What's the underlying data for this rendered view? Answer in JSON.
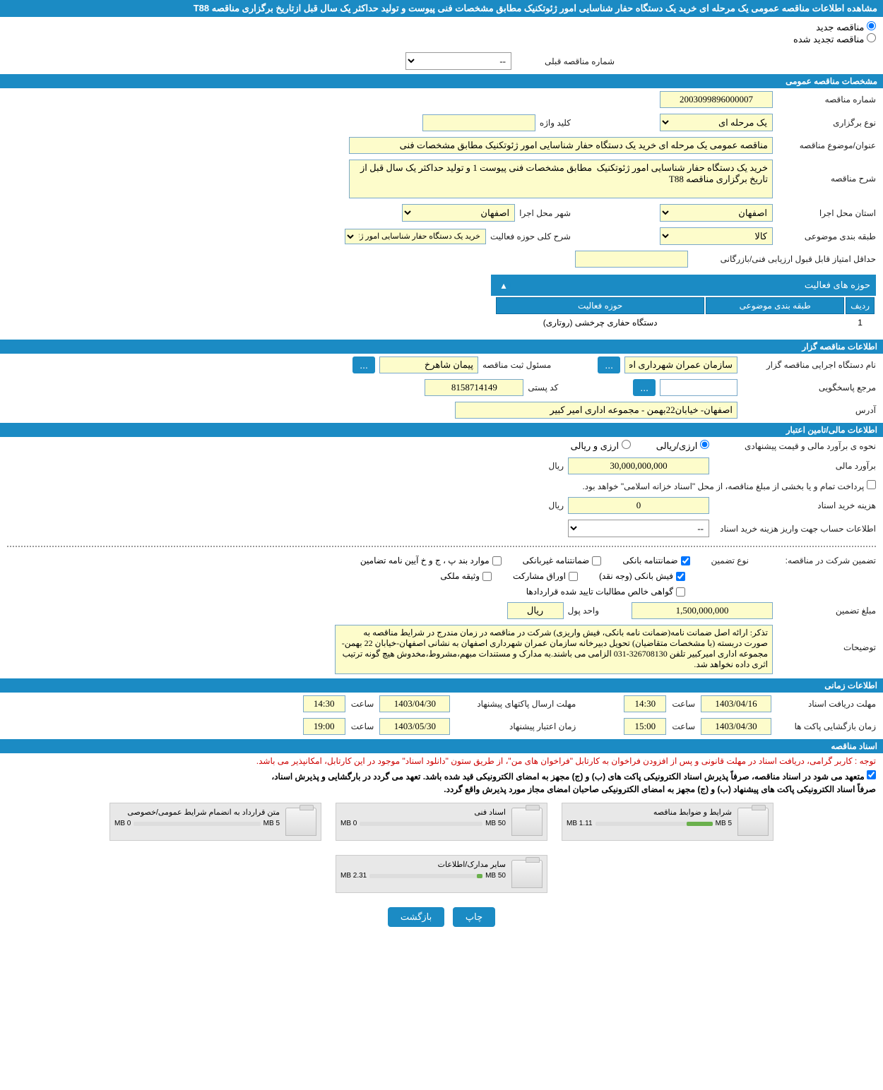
{
  "page_title": "مشاهده اطلاعات مناقصه عمومی یک مرحله ای خرید یک دستگاه حفار شناسایی امور ژئوتکنیک مطابق مشخصات فنی پیوست و تولید حداکثر یک سال قبل ازتاریخ برگزاری مناقصه T88",
  "radios": {
    "new": "مناقصه جدید",
    "renewed": "مناقصه تجدید شده"
  },
  "prev_number_label": "شماره مناقصه قبلی",
  "prev_number_value": "--",
  "sections": {
    "general": "مشخصات مناقصه عمومی",
    "holder": "اطلاعات مناقصه گزار",
    "financial": "اطلاعات مالی/تامین اعتبار",
    "time": "اطلاعات زمانی",
    "docs": "اسناد مناقصه"
  },
  "general": {
    "number_label": "شماره مناقصه",
    "number": "2003099896000007",
    "type_label": "نوع برگزاری",
    "type": "یک مرحله ای",
    "keyword_label": "کلید واژه",
    "keyword": "",
    "title_label": "عنوان/موضوع مناقصه",
    "title": "مناقصه عمومی یک مرحله ای خرید یک دستگاه حفار شناسایی امور ژئوتکنیک مطابق مشخصات فنی",
    "desc_label": "شرح مناقصه",
    "desc": "خرید یک دستگاه حفار شناسایی امور ژئوتکنیک  مطابق مشخصات فنی پیوست 1 و تولید حداکثر یک سال قبل از تاریخ برگزاری مناقصه T88",
    "province_label": "استان محل اجرا",
    "province": "اصفهان",
    "city_label": "شهر محل اجرا",
    "city": "اصفهان",
    "class_label": "طبقه بندی موضوعی",
    "class": "کالا",
    "scope_label": "شرح کلی حوزه فعالیت",
    "scope": "خرید یک دستگاه حفار شناسایی امور ژئوتکنیک",
    "min_score_label": "حداقل امتیاز قابل قبول ارزیابی فنی/بازرگانی",
    "min_score": ""
  },
  "activity": {
    "header": "حوزه های فعالیت",
    "col_row": "ردیف",
    "col_class": "طبقه بندی موضوعی",
    "col_scope": "حوزه فعالیت",
    "row_num": "1",
    "row_class": "",
    "row_scope": "دستگاه حفاری چرخشی (روتاری)"
  },
  "holder": {
    "org_label": "نام دستگاه اجرایی مناقصه گزار",
    "org": "سازمان عمران شهرداری اص",
    "reg_official_label": "مسئول ثبت مناقصه",
    "reg_official": "پیمان شاهرخ",
    "contact_label": "مرجع پاسخگویی",
    "contact": "",
    "postal_label": "کد پستی",
    "postal": "8158714149",
    "address_label": "آدرس",
    "address": "اصفهان- خیابان22بهمن - مجموعه اداری امیر کبیر"
  },
  "financial": {
    "est_method_label": "نحوه ی برآورد مالی و قیمت پیشنهادی",
    "opt_rial": "ارزی/ریالی",
    "opt_currency": "ارزی و ریالی",
    "est_label": "برآورد مالی",
    "est": "30,000,000,000",
    "rial": "ریال",
    "treasury_note": "پرداخت تمام و یا بخشی از مبلغ مناقصه، از محل \"اسناد خزانه اسلامی\" خواهد بود.",
    "doc_cost_label": "هزینه خرید اسناد",
    "doc_cost": "0",
    "account_label": "اطلاعات حساب جهت واریز هزینه خرید اسناد",
    "account": "--",
    "guarantee_label": "تضمین شرکت در مناقصه:",
    "guarantee_type_label": "نوع تضمین",
    "chk_bank": "ضمانتنامه بانکی",
    "chk_nonbank": "ضمانتنامه غیربانکی",
    "chk_cases": "موارد بند پ ، ج و خ آیین نامه تضامین",
    "chk_cash": "فیش بانکی (وجه نقد)",
    "chk_securities": "اوراق مشارکت",
    "chk_property": "وثیقه ملکی",
    "chk_claims": "گواهی خالص مطالبات تایید شده قراردادها",
    "amount_label": "مبلغ تضمین",
    "amount": "1,500,000,000",
    "unit_label": "واحد پول",
    "unit": "ریال",
    "remarks_label": "توضیحات",
    "remarks": "تذکر: ارائه اصل ضمانت نامه(ضمانت نامه بانکی، فیش واریزی) شرکت در مناقصه در زمان مندرج در شرایط مناقصه به صورت دربسته (با مشخصات متقاضیان) تحویل دبیرخانه سازمان عمران شهرداری اصفهان به نشانی اصفهان-خیابان 22 بهمن-مجموعه اداری امیرکبیر تلفن 326708130-031 الزامی می باشند.به مدارک و مستندات مبهم،مشروط،مخدوش هیچ گونه ترتیب اثری داده نخواهد شد."
  },
  "time": {
    "receive_label": "مهلت دریافت اسناد",
    "receive_date": "1403/04/16",
    "receive_time_label": "ساعت",
    "receive_time": "14:30",
    "send_label": "مهلت ارسال پاکتهای پیشنهاد",
    "send_date": "1403/04/30",
    "send_time_label": "ساعت",
    "send_time": "14:30",
    "open_label": "زمان بازگشایی پاکت ها",
    "open_date": "1403/04/30",
    "open_time_label": "ساعت",
    "open_time": "15:00",
    "validity_label": "زمان اعتبار پیشنهاد",
    "validity_date": "1403/05/30",
    "validity_time_label": "ساعت",
    "validity_time": "19:00"
  },
  "docs": {
    "notice": "توجه : کاربر گرامی، دریافت اسناد در مهلت قانونی و پس از افزودن فراخوان به کارتابل \"فراخوان های من\"، از طریق ستون \"دانلود اسناد\" موجود در این کارتابل، امکانپذیر می باشد.",
    "commit1": "متعهد می شود در اسناد مناقصه، صرفاً پذیرش اسناد الکترونیکی پاکت های (ب) و (ج) مجهز به امضای الکترونیکی قید شده باشد. تعهد می گردد در بارگشایی و پذیرش اسناد،",
    "commit2": "صرفاً اسناد الکترونیکی پاکت های پیشنهاد (ب) و (ج) مجهز به امضای الکترونیکی صاحبان امضای مجاز مورد پذیرش واقع گردد.",
    "cards": [
      {
        "title": "شرایط و ضوابط مناقصه",
        "used": "1.11 MB",
        "total": "5 MB",
        "pct": 22
      },
      {
        "title": "اسناد فنی",
        "used": "0 MB",
        "total": "50 MB",
        "pct": 0
      },
      {
        "title": "متن قرارداد به انضمام شرایط عمومی/خصوصی",
        "used": "0 MB",
        "total": "5 MB",
        "pct": 0
      },
      {
        "title": "سایر مدارک/اطلاعات",
        "used": "2.31 MB",
        "total": "50 MB",
        "pct": 5
      }
    ]
  },
  "buttons": {
    "print": "چاپ",
    "back": "بازگشت",
    "dots": "..."
  }
}
